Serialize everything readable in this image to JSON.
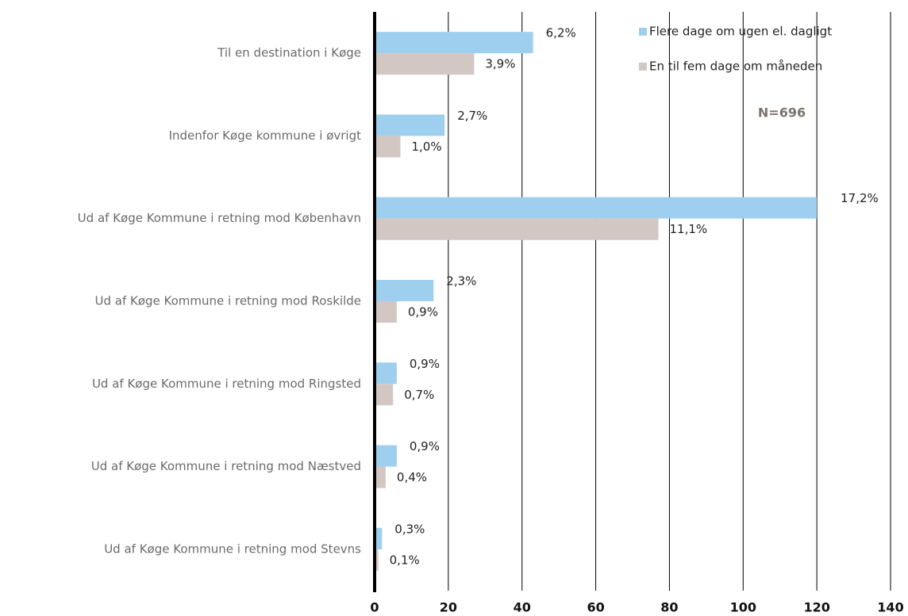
{
  "chart_data": {
    "type": "hbar",
    "categories": [
      "Til en destination i Køge",
      "Indenfor Køge kommune i øvrigt",
      "Ud af Køge Kommune i retning mod København",
      "Ud af Køge Kommune i retning mod Roskilde",
      "Ud af Køge Kommune i retning mod Ringsted",
      "Ud af Køge Kommune i retning mod Næstved",
      "Ud af Køge Kommune i retning mod Stevns"
    ],
    "series": [
      {
        "name": "Flere dage om ugen el. dagligt",
        "color": "#9fcfee",
        "values": [
          43,
          19,
          120,
          16,
          6,
          6,
          2
        ],
        "value_labels": [
          "6,2%",
          "2,7%",
          "17,2%",
          "2,3%",
          "0,9%",
          "0,9%",
          "0,3%"
        ]
      },
      {
        "name": "En til fem dage om måneden",
        "color": "#d2c7c3",
        "values": [
          27,
          7,
          77,
          6,
          5,
          3,
          1
        ],
        "value_labels": [
          "3,9%",
          "1,0%",
          "11,1%",
          "0,9%",
          "0,7%",
          "0,4%",
          "0,1%"
        ]
      }
    ],
    "annotation": "N=696",
    "xlim": [
      0,
      140
    ],
    "xticks": [
      0,
      20,
      40,
      60,
      80,
      100,
      120,
      140
    ],
    "grid": true
  }
}
